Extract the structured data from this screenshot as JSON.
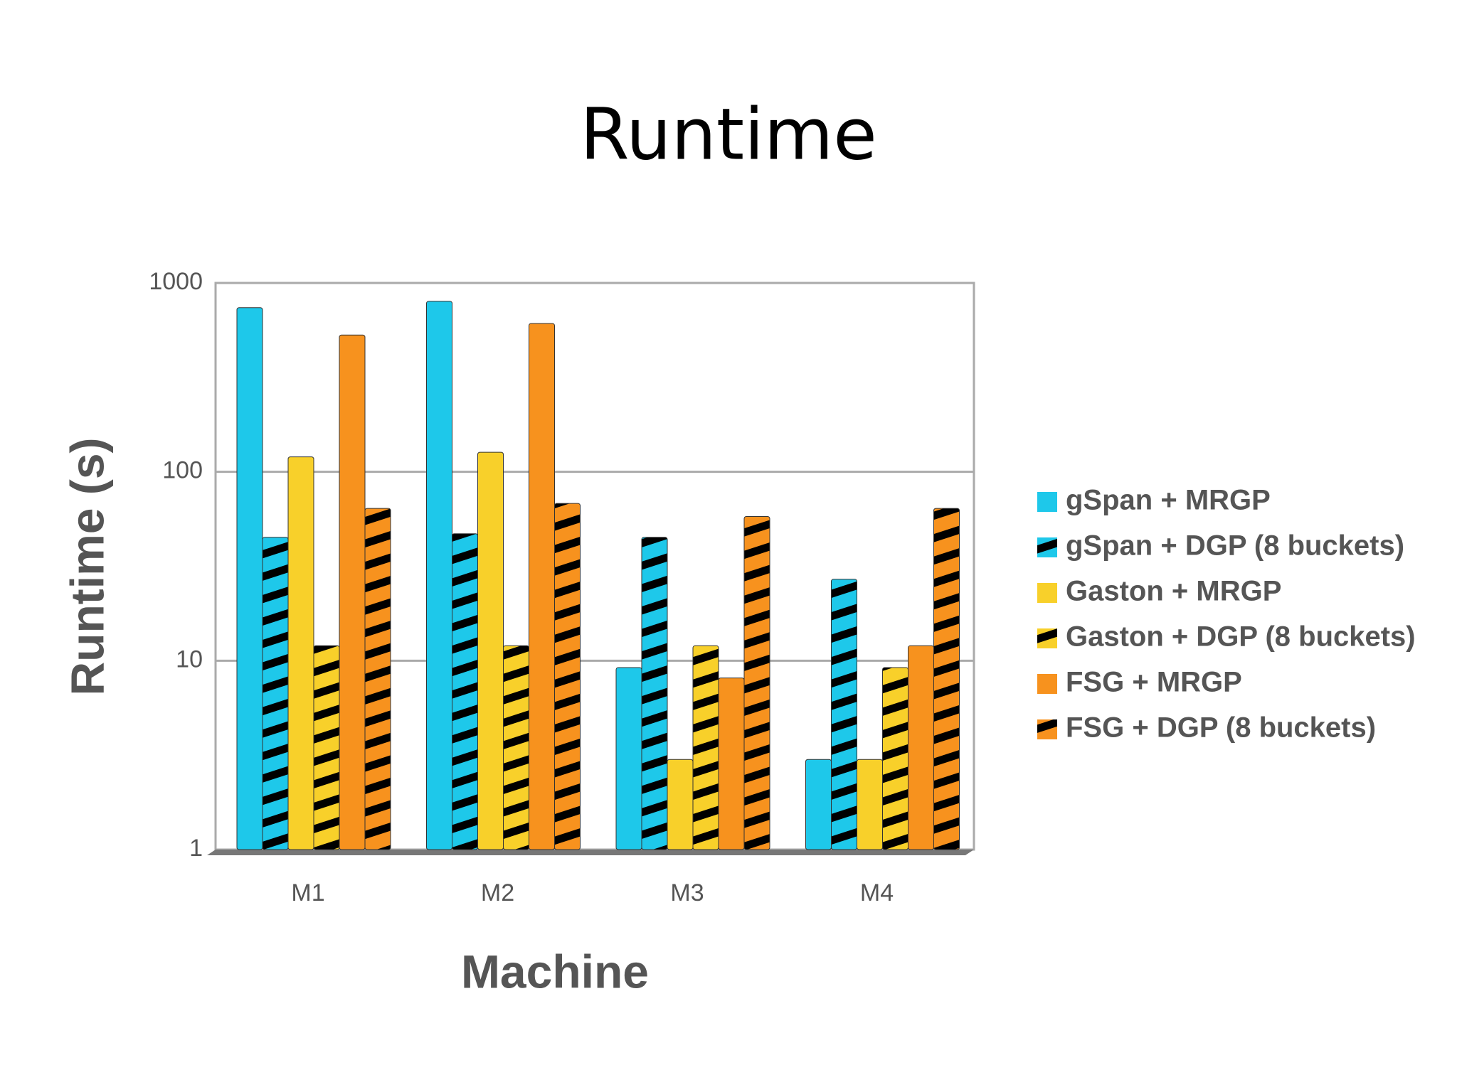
{
  "chart_data": {
    "type": "bar",
    "title": "Runtime",
    "x_label": "Machine",
    "y_label": "Runtime (s)",
    "categories": [
      "M1",
      "M2",
      "M3",
      "M4"
    ],
    "log_scale": true,
    "grid": true,
    "ylim": [
      1,
      1000
    ],
    "yticks": [
      1,
      10,
      100,
      1000
    ],
    "legend_position": "right",
    "series": [
      {
        "name": "gSpan + MRGP",
        "color": "#1ec8ea",
        "hatched": false,
        "values": [
          740,
          800,
          9.2,
          3.0
        ]
      },
      {
        "name": "gSpan + DGP (8 buckets)",
        "color": "#1ec8ea",
        "hatched": true,
        "values": [
          45,
          47,
          45,
          27
        ]
      },
      {
        "name": "Gaston + MRGP",
        "color": "#f8d02a",
        "hatched": false,
        "values": [
          120,
          127,
          3.0,
          3.0
        ]
      },
      {
        "name": "Gaston + DGP (8 buckets)",
        "color": "#f8d02a",
        "hatched": true,
        "values": [
          12,
          12,
          12,
          9.2
        ]
      },
      {
        "name": "FSG + MRGP",
        "color": "#f7921e",
        "hatched": false,
        "values": [
          530,
          610,
          8.1,
          12
        ]
      },
      {
        "name": "FSG + DGP (8 buckets)",
        "color": "#f7921e",
        "hatched": true,
        "values": [
          64,
          68,
          58,
          64
        ]
      }
    ]
  }
}
